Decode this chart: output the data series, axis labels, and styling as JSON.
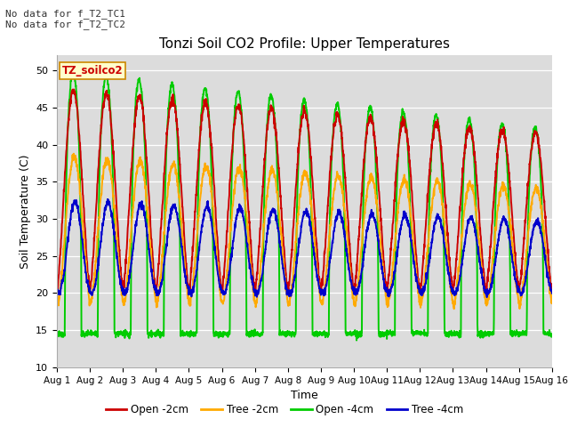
{
  "title": "Tonzi Soil CO2 Profile: Upper Temperatures",
  "ylabel": "Soil Temperature (C)",
  "xlabel": "Time",
  "ylim": [
    10,
    52
  ],
  "yticks": [
    10,
    15,
    20,
    25,
    30,
    35,
    40,
    45,
    50
  ],
  "background_color": "#dcdcdc",
  "annotation_text": "No data for f_T2_TC1\nNo data for f_T2_TC2",
  "legend_box_label": "TZ_soilco2",
  "legend_box_color": "#ffffcc",
  "legend_box_border": "#cc8800",
  "series": {
    "open_2cm": {
      "color": "#cc0000",
      "label": "Open -2cm",
      "lw": 1.4
    },
    "tree_2cm": {
      "color": "#ffaa00",
      "label": "Tree -2cm",
      "lw": 1.4
    },
    "open_4cm": {
      "color": "#00cc00",
      "label": "Open -4cm",
      "lw": 1.4
    },
    "tree_4cm": {
      "color": "#0000cc",
      "label": "Tree -4cm",
      "lw": 1.4
    }
  },
  "xtick_labels": [
    "Aug 1",
    "Aug 2",
    "Aug 3",
    "Aug 4",
    "Aug 5",
    "Aug 6",
    "Aug 7",
    "Aug 8",
    "Aug 9",
    "Aug 10",
    "Aug 11",
    "Aug 12",
    "Aug 13",
    "Aug 14",
    "Aug 15",
    "Aug 16"
  ],
  "n_days": 15,
  "pts_per_day": 144
}
